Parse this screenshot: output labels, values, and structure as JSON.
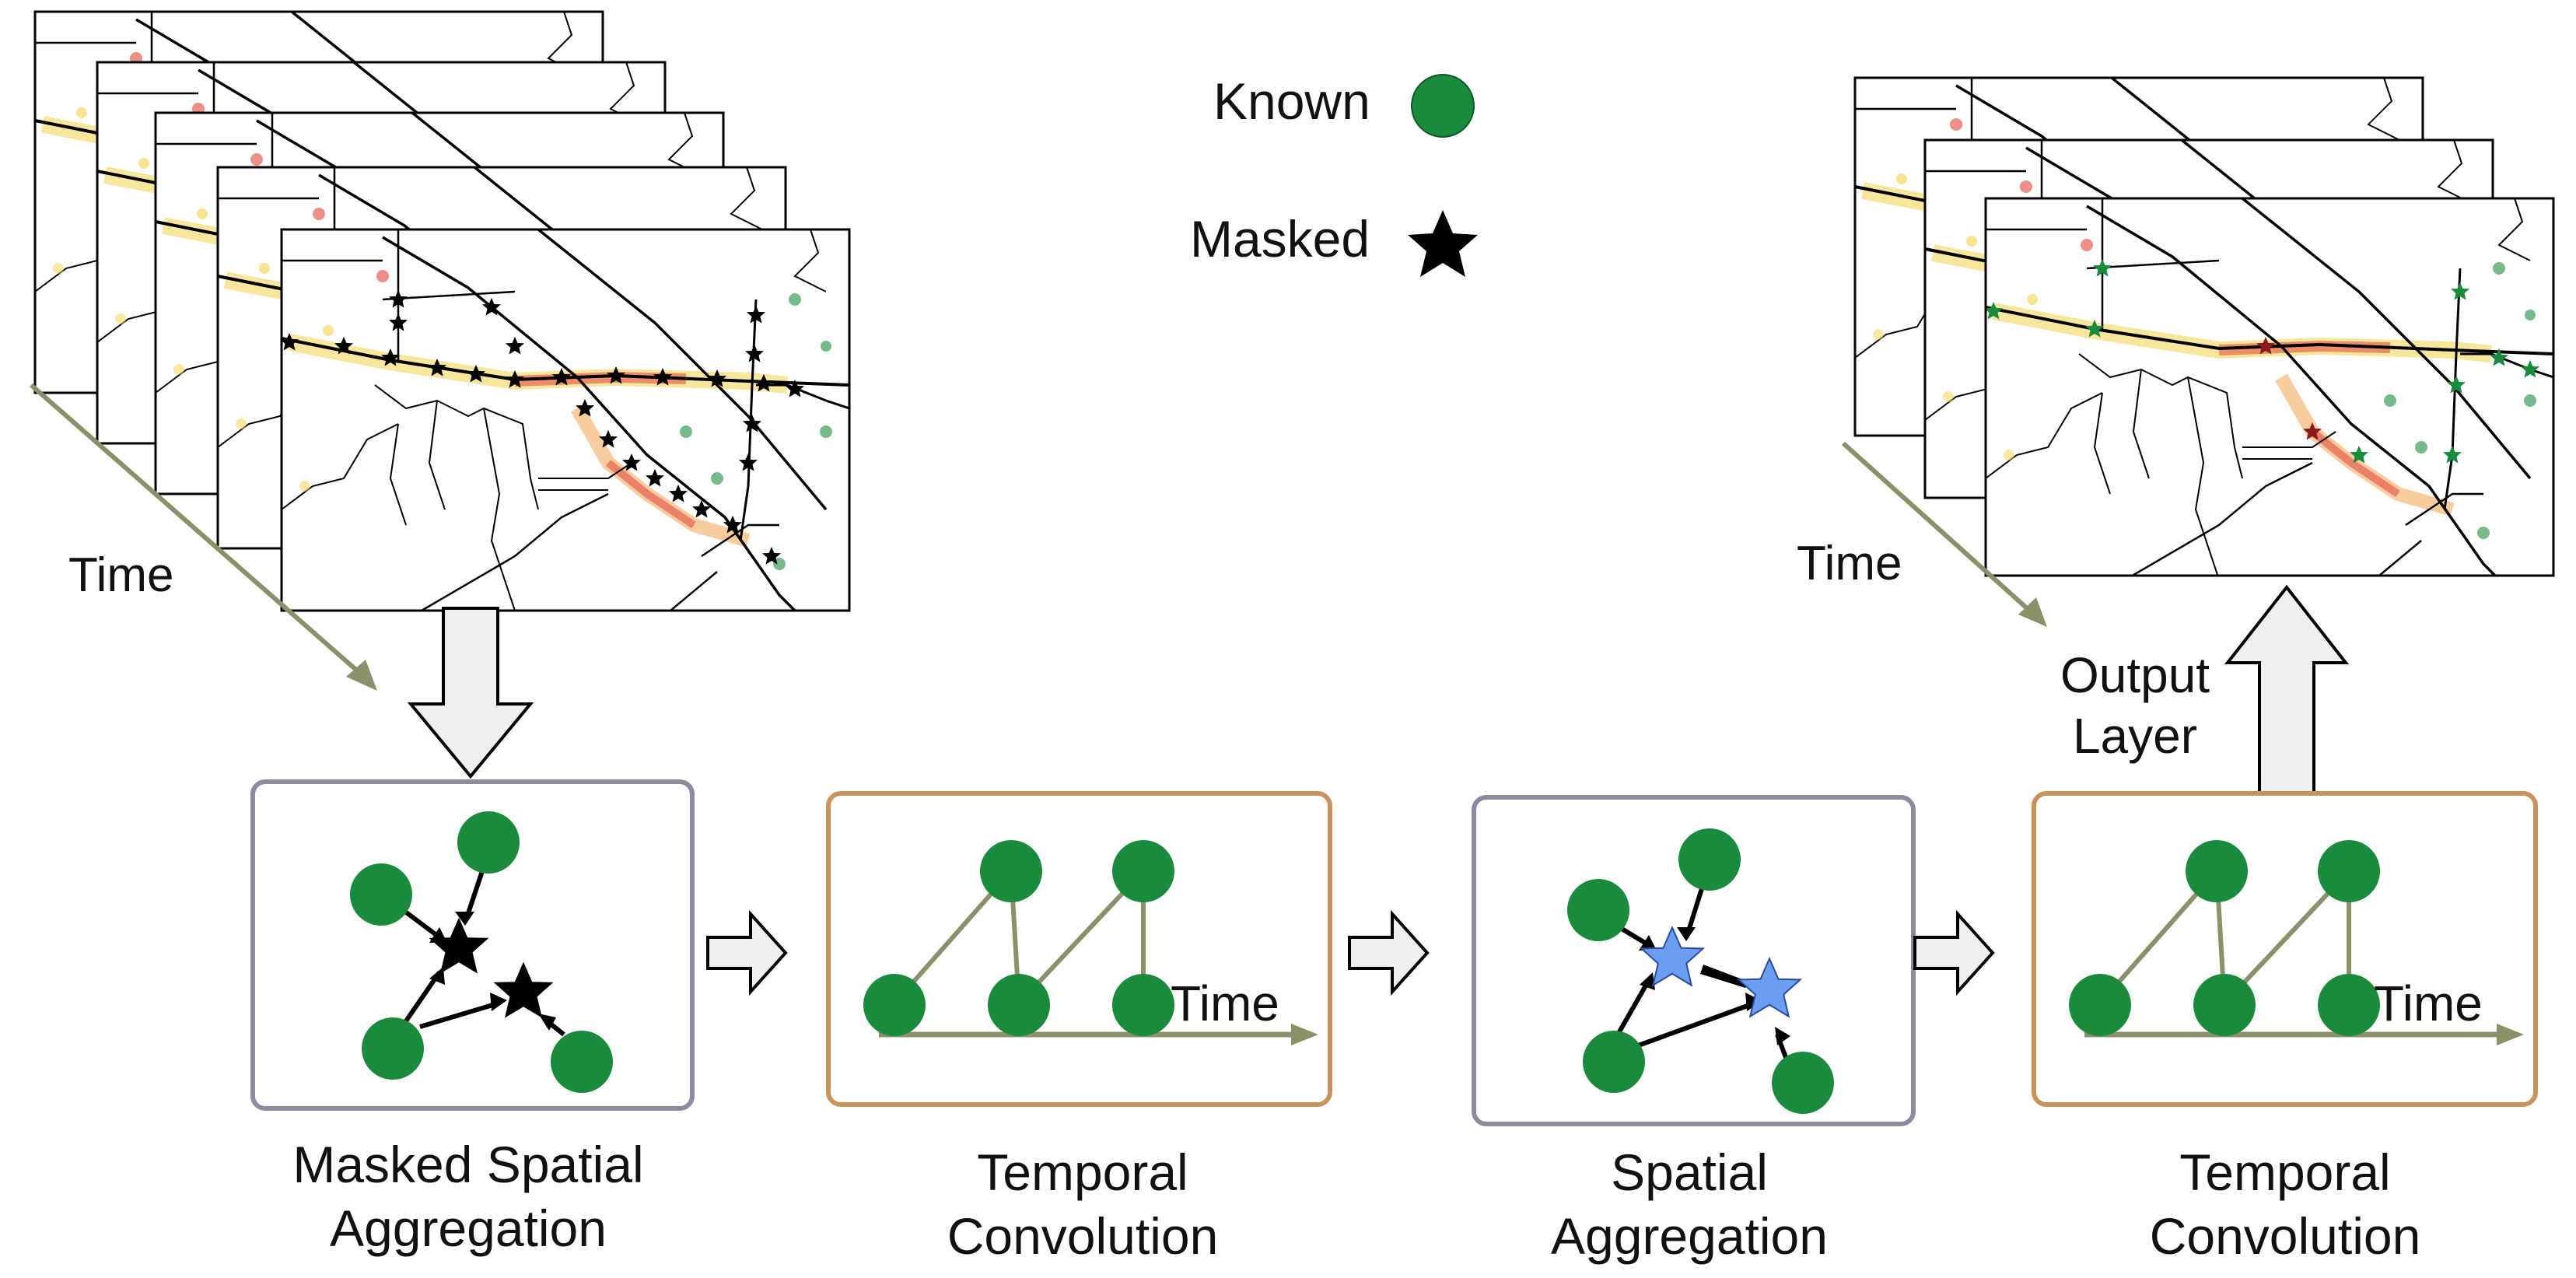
{
  "legend": {
    "known_label": "Known",
    "masked_label": "Masked"
  },
  "input_stack": {
    "time_label": "Time"
  },
  "output_stack": {
    "time_label": "Time",
    "output_layer_line1": "Output",
    "output_layer_line2": "Layer"
  },
  "pipeline": [
    {
      "line1": "Masked Spatial",
      "line2": "Aggregation"
    },
    {
      "line1": "Temporal",
      "line2": "Convolution",
      "axis_label": "Time"
    },
    {
      "line1": "Spatial",
      "line2": "Aggregation"
    },
    {
      "line1": "Temporal",
      "line2": "Convolution",
      "axis_label": "Time"
    }
  ],
  "colors": {
    "known_node": "#1a8a3c",
    "masked_star": "#000000",
    "spatial_star": "#6b9ef0",
    "olive_arrow": "#8c9068",
    "spatial_box_border": "#8a8aa0",
    "temporal_box_border": "#c8935a",
    "big_arrow_fill": "#efefef",
    "heat_red": "#e0453a",
    "heat_yellow": "#f2d24a",
    "heat_orange": "#f39a3c"
  }
}
